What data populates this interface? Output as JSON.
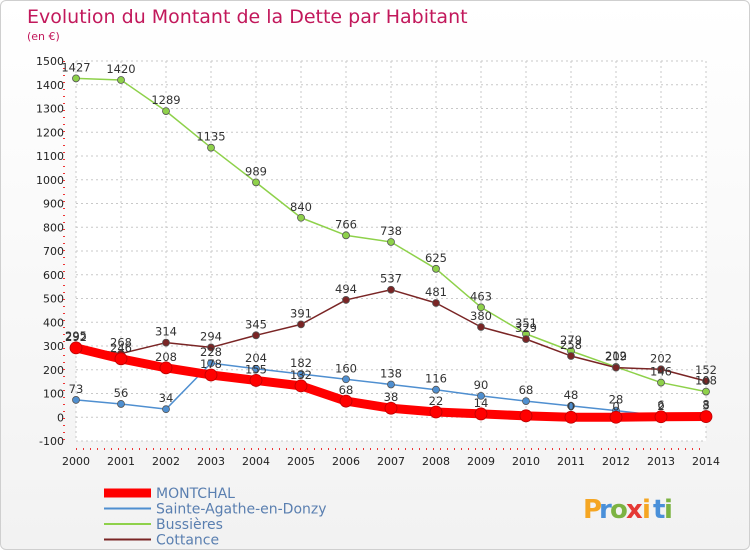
{
  "chart_data": {
    "type": "line",
    "title": "Evolution du Montant de la Dette par Habitant",
    "subtitle": "(en €)",
    "x": [
      2000,
      2001,
      2002,
      2003,
      2004,
      2005,
      2006,
      2007,
      2008,
      2009,
      2010,
      2011,
      2012,
      2013,
      2014
    ],
    "ylim": [
      -100,
      1500
    ],
    "yticks": [
      -100,
      0,
      100,
      200,
      300,
      400,
      500,
      600,
      700,
      800,
      900,
      1000,
      1100,
      1200,
      1300,
      1400,
      1500
    ],
    "grid": true,
    "legend_position": "bottom-left",
    "series": [
      {
        "name": "MONTCHAL",
        "color": "#ff0000",
        "values": [
          292,
          246,
          208,
          178,
          155,
          132,
          68,
          38,
          22,
          14,
          6,
          0,
          0,
          2,
          3
        ],
        "labels": [
          "292",
          "246",
          "208",
          "178",
          "155",
          "132",
          "68",
          "38",
          "22",
          "14",
          "",
          "0",
          "0",
          "2",
          "3"
        ]
      },
      {
        "name": "Sainte-Agathe-en-Donzy",
        "color": "#4f8fd0",
        "values": [
          73,
          56,
          34,
          228,
          204,
          182,
          160,
          138,
          116,
          90,
          68,
          48,
          28,
          6,
          8
        ],
        "labels": [
          "73",
          "56",
          "34",
          "228",
          "204",
          "182",
          "160",
          "138",
          "116",
          "90",
          "68",
          "48",
          "28",
          "6",
          "8"
        ]
      },
      {
        "name": "Bussières",
        "color": "#8ed14a",
        "values": [
          1427,
          1420,
          1289,
          1135,
          989,
          840,
          766,
          738,
          625,
          463,
          351,
          279,
          212,
          146,
          108
        ],
        "labels": [
          "1427",
          "1420",
          "1289",
          "1135",
          "989",
          "840",
          "766",
          "738",
          "625",
          "463",
          "351",
          "279",
          "212",
          "146",
          "108"
        ]
      },
      {
        "name": "Cottance",
        "color": "#7a2525",
        "values": [
          295,
          268,
          314,
          294,
          345,
          391,
          494,
          537,
          481,
          380,
          329,
          258,
          209,
          202,
          152
        ],
        "labels": [
          "295",
          "268",
          "314",
          "294",
          "345",
          "391",
          "494",
          "537",
          "481",
          "380",
          "329",
          "258",
          "209",
          "202",
          "152"
        ]
      }
    ]
  },
  "logo": {
    "letters": [
      "P",
      "r",
      "o",
      "x",
      "i",
      "t",
      "i"
    ],
    "colors": [
      "#f5a623",
      "#4a90d9",
      "#7cb342",
      "#e53935",
      "#f5a623",
      "#4a90d9",
      "#7cb342"
    ]
  }
}
